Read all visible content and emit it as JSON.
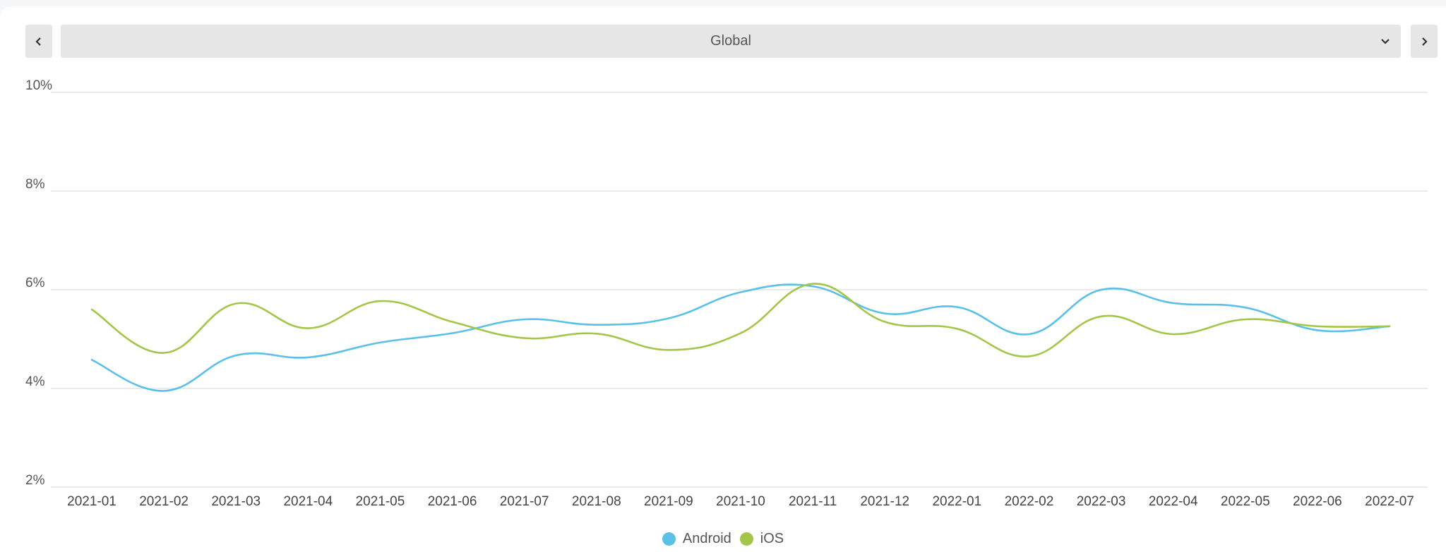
{
  "header": {
    "region_select_value": "Global",
    "prev_icon": "chevron-left-icon",
    "next_icon": "chevron-right-icon",
    "dropdown_icon": "chevron-down-icon"
  },
  "chart_data": {
    "type": "line",
    "title": "",
    "xlabel": "",
    "ylabel": "",
    "x": [
      "2021-01",
      "2021-02",
      "2021-03",
      "2021-04",
      "2021-05",
      "2021-06",
      "2021-07",
      "2021-08",
      "2021-09",
      "2021-10",
      "2021-11",
      "2021-12",
      "2022-01",
      "2022-02",
      "2022-03",
      "2022-04",
      "2022-05",
      "2022-06",
      "2022-07"
    ],
    "ylim": [
      2,
      10
    ],
    "yticks": [
      2,
      4,
      6,
      8,
      10
    ],
    "ytick_labels": [
      "2%",
      "4%",
      "6%",
      "8%",
      "10%"
    ],
    "grid": true,
    "legend_position": "bottom-center",
    "series": [
      {
        "name": "Android",
        "color": "#5bc0e8",
        "values": [
          4.58,
          3.95,
          4.67,
          4.63,
          4.93,
          5.12,
          5.4,
          5.29,
          5.42,
          5.95,
          6.07,
          5.52,
          5.65,
          5.1,
          6.0,
          5.73,
          5.64,
          5.18,
          5.26
        ]
      },
      {
        "name": "iOS",
        "color": "#a3c64a",
        "values": [
          5.6,
          4.72,
          5.72,
          5.22,
          5.77,
          5.35,
          5.02,
          5.11,
          4.78,
          5.12,
          6.12,
          5.35,
          5.21,
          4.65,
          5.46,
          5.1,
          5.4,
          5.26,
          5.26
        ]
      }
    ]
  }
}
